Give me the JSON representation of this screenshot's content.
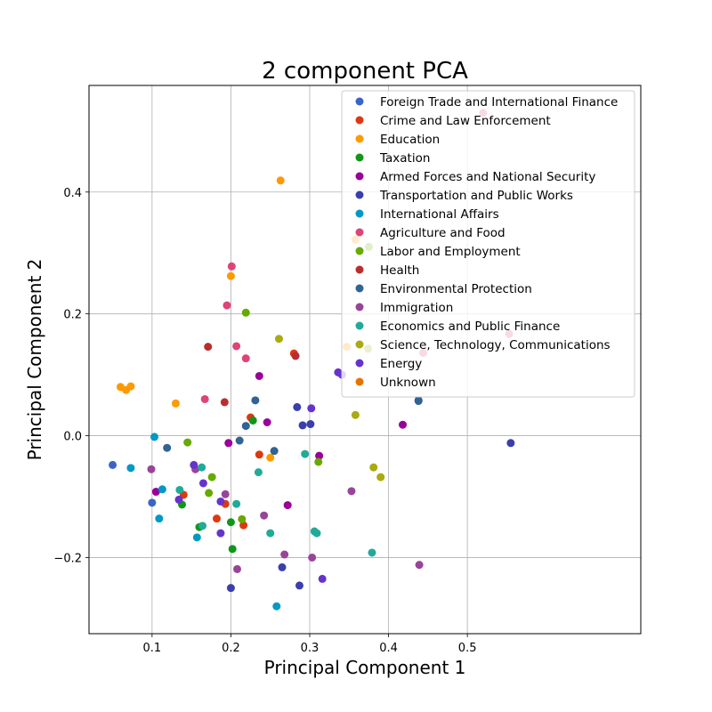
{
  "chart_data": {
    "type": "scatter",
    "title": "2 component PCA",
    "xlabel": "Principal Component 1",
    "ylabel": "Principal Component 2",
    "xlim": [
      0.02,
      0.72
    ],
    "ylim": [
      -0.325,
      0.575
    ],
    "xticks": [
      0.1,
      0.2,
      0.3,
      0.4,
      0.5
    ],
    "yticks": [
      -0.2,
      0.0,
      0.2,
      0.4
    ],
    "xtick_labels": [
      "0.1",
      "0.2",
      "0.3",
      "0.4",
      "0.5"
    ],
    "ytick_labels": [
      "−0.2",
      "0.0",
      "0.2",
      "0.4"
    ],
    "grid": true,
    "legend_position": "top-right",
    "series": [
      {
        "name": "Foreign Trade and International Finance",
        "color": "#3a64c8",
        "points": [
          [
            0.05,
            -0.048
          ],
          [
            0.1,
            -0.11
          ]
        ]
      },
      {
        "name": "Crime and Law Enforcement",
        "color": "#dc3912",
        "points": [
          [
            0.14,
            -0.097
          ],
          [
            0.182,
            -0.136
          ],
          [
            0.193,
            -0.112
          ],
          [
            0.216,
            -0.147
          ],
          [
            0.225,
            0.03
          ],
          [
            0.236,
            -0.031
          ],
          [
            0.28,
            0.135
          ]
        ]
      },
      {
        "name": "Education",
        "color": "#ff9900",
        "points": [
          [
            0.06,
            0.08
          ],
          [
            0.067,
            0.075
          ],
          [
            0.073,
            0.081
          ],
          [
            0.13,
            0.053
          ],
          [
            0.2,
            0.262
          ],
          [
            0.263,
            0.419
          ],
          [
            0.25,
            -0.036
          ],
          [
            0.358,
            0.322
          ],
          [
            0.347,
            0.146
          ]
        ]
      },
      {
        "name": "Taxation",
        "color": "#109618",
        "points": [
          [
            0.138,
            -0.113
          ],
          [
            0.16,
            -0.15
          ],
          [
            0.2,
            -0.142
          ],
          [
            0.202,
            -0.186
          ],
          [
            0.228,
            0.025
          ]
        ]
      },
      {
        "name": "Armed Forces and National Security",
        "color": "#990099",
        "points": [
          [
            0.105,
            -0.092
          ],
          [
            0.197,
            -0.012
          ],
          [
            0.236,
            0.098
          ],
          [
            0.246,
            0.022
          ],
          [
            0.272,
            -0.114
          ],
          [
            0.312,
            -0.033
          ],
          [
            0.418,
            0.018
          ]
        ]
      },
      {
        "name": "Transportation and Public Works",
        "color": "#3b3eac",
        "points": [
          [
            0.2,
            -0.25
          ],
          [
            0.265,
            -0.216
          ],
          [
            0.284,
            0.047
          ],
          [
            0.287,
            -0.246
          ],
          [
            0.291,
            0.017
          ],
          [
            0.301,
            0.019
          ],
          [
            0.438,
            0.058
          ],
          [
            0.555,
            -0.012
          ]
        ]
      },
      {
        "name": "International Affairs",
        "color": "#0099c6",
        "points": [
          [
            0.073,
            -0.053
          ],
          [
            0.103,
            -0.002
          ],
          [
            0.109,
            -0.136
          ],
          [
            0.113,
            -0.088
          ],
          [
            0.157,
            -0.167
          ],
          [
            0.258,
            -0.28
          ]
        ]
      },
      {
        "name": "Agriculture and Food",
        "color": "#dd4477",
        "points": [
          [
            0.167,
            0.06
          ],
          [
            0.195,
            0.214
          ],
          [
            0.201,
            0.278
          ],
          [
            0.207,
            0.147
          ],
          [
            0.219,
            0.127
          ],
          [
            0.52,
            0.53
          ],
          [
            0.444,
            0.136
          ],
          [
            0.553,
            0.167
          ]
        ]
      },
      {
        "name": "Labor and Employment",
        "color": "#66aa00",
        "points": [
          [
            0.145,
            -0.011
          ],
          [
            0.172,
            -0.094
          ],
          [
            0.176,
            -0.068
          ],
          [
            0.219,
            0.202
          ],
          [
            0.214,
            -0.137
          ],
          [
            0.311,
            -0.043
          ],
          [
            0.375,
            0.31
          ]
        ]
      },
      {
        "name": "Health",
        "color": "#b82e2e",
        "points": [
          [
            0.171,
            0.146
          ],
          [
            0.192,
            0.055
          ],
          [
            0.282,
            0.131
          ]
        ]
      },
      {
        "name": "Environmental Protection",
        "color": "#316395",
        "points": [
          [
            0.119,
            -0.02
          ],
          [
            0.211,
            -0.008
          ],
          [
            0.219,
            0.016
          ],
          [
            0.231,
            0.058
          ],
          [
            0.255,
            -0.025
          ],
          [
            0.438,
            0.057
          ]
        ]
      },
      {
        "name": "Immigration",
        "color": "#994499",
        "points": [
          [
            0.099,
            -0.055
          ],
          [
            0.155,
            -0.055
          ],
          [
            0.193,
            -0.096
          ],
          [
            0.208,
            -0.219
          ],
          [
            0.242,
            -0.131
          ],
          [
            0.268,
            -0.195
          ],
          [
            0.303,
            -0.2
          ],
          [
            0.353,
            -0.091
          ],
          [
            0.439,
            -0.212
          ]
        ]
      },
      {
        "name": "Economics and Public Finance",
        "color": "#22aa99",
        "points": [
          [
            0.135,
            -0.089
          ],
          [
            0.163,
            -0.052
          ],
          [
            0.164,
            -0.148
          ],
          [
            0.207,
            -0.112
          ],
          [
            0.235,
            -0.06
          ],
          [
            0.25,
            -0.16
          ],
          [
            0.294,
            -0.03
          ],
          [
            0.306,
            -0.157
          ],
          [
            0.309,
            -0.16
          ],
          [
            0.379,
            -0.192
          ]
        ]
      },
      {
        "name": "Science, Technology, Communications",
        "color": "#aaaa11",
        "points": [
          [
            0.261,
            0.159
          ],
          [
            0.358,
            0.034
          ],
          [
            0.374,
            0.143
          ],
          [
            0.381,
            -0.052
          ],
          [
            0.39,
            -0.068
          ]
        ]
      },
      {
        "name": "Energy",
        "color": "#6633cc",
        "points": [
          [
            0.134,
            -0.105
          ],
          [
            0.153,
            -0.048
          ],
          [
            0.165,
            -0.078
          ],
          [
            0.187,
            -0.108
          ],
          [
            0.187,
            -0.16
          ],
          [
            0.302,
            0.045
          ],
          [
            0.316,
            -0.235
          ],
          [
            0.336,
            0.104
          ],
          [
            0.341,
            0.1
          ]
        ]
      },
      {
        "name": "Unknown",
        "color": "#e67300",
        "points": []
      }
    ]
  }
}
